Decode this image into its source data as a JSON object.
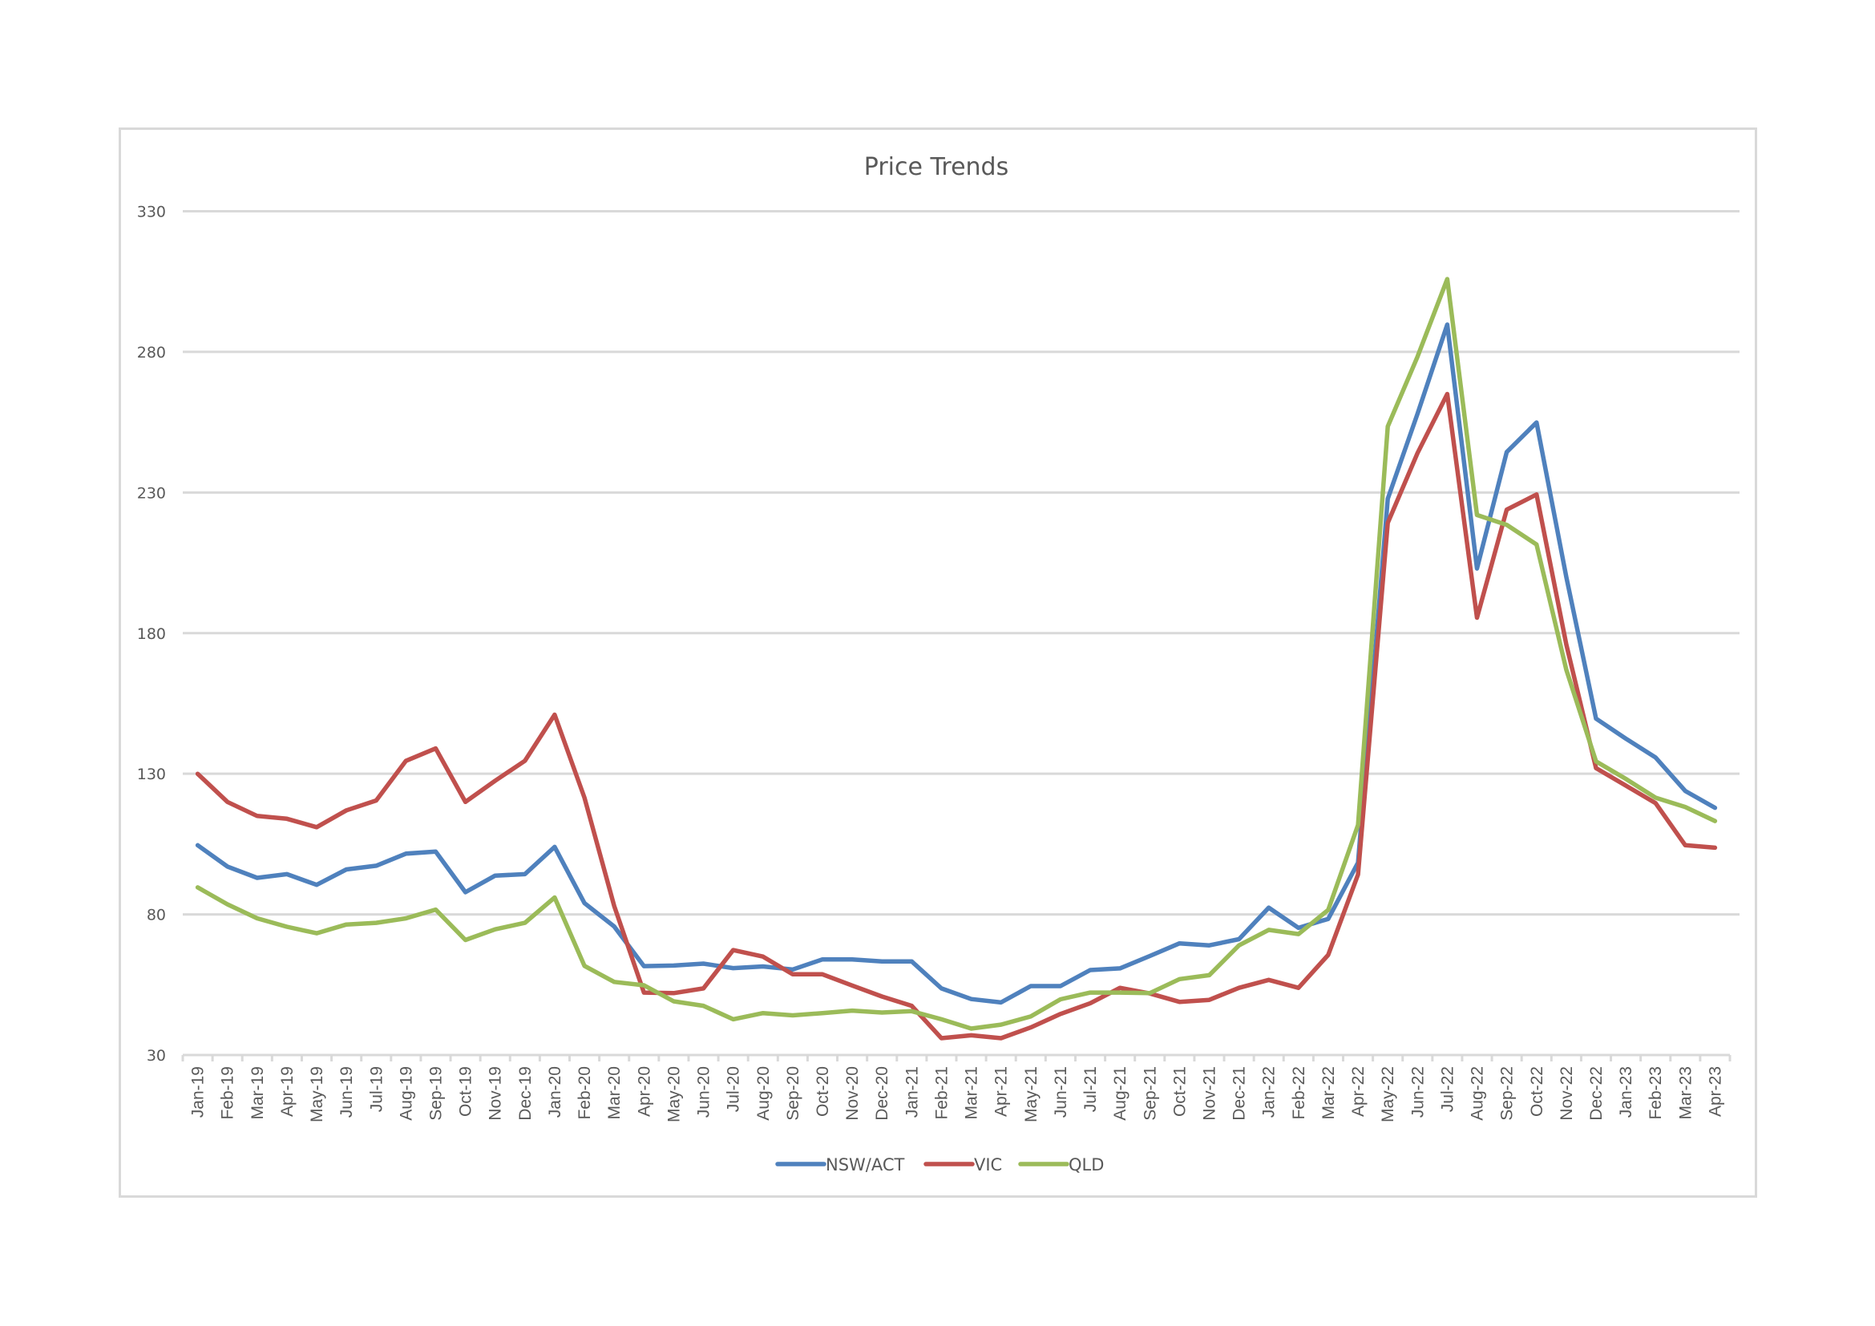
{
  "chart_data": {
    "type": "line",
    "title": "Price Trends",
    "xlabel": "",
    "ylabel": "",
    "ylim": [
      30,
      330
    ],
    "yticks": [
      30,
      80,
      130,
      180,
      230,
      280,
      330
    ],
    "grid": true,
    "legend_position": "bottom",
    "categories": [
      "Jan-19",
      "Feb-19",
      "Mar-19",
      "Apr-19",
      "May-19",
      "Jun-19",
      "Jul-19",
      "Aug-19",
      "Sep-19",
      "Oct-19",
      "Nov-19",
      "Dec-19",
      "Jan-20",
      "Feb-20",
      "Mar-20",
      "Apr-20",
      "May-20",
      "Jun-20",
      "Jul-20",
      "Aug-20",
      "Sep-20",
      "Oct-20",
      "Nov-20",
      "Dec-20",
      "Jan-21",
      "Feb-21",
      "Mar-21",
      "Apr-21",
      "May-21",
      "Jun-21",
      "Jul-21",
      "Aug-21",
      "Sep-21",
      "Oct-21",
      "Nov-21",
      "Dec-21",
      "Jan-22",
      "Feb-22",
      "Mar-22",
      "Apr-22",
      "May-22",
      "Jun-22",
      "Jul-22",
      "Aug-22",
      "Sep-22",
      "Oct-22",
      "Nov-22",
      "Dec-22",
      "Jan-23",
      "Feb-23",
      "Mar-23",
      "Apr-23"
    ],
    "series": [
      {
        "name": "NSW/ACT",
        "color": "#4f81bd",
        "values": [
          104.6,
          97,
          93,
          94.3,
          90.5,
          96,
          97.3,
          101.6,
          102.3,
          87.9,
          93.8,
          94.3,
          104,
          84,
          75.7,
          61.6,
          61.8,
          62.5,
          60.9,
          61.5,
          60.4,
          64,
          64,
          63.3,
          63.3,
          53.7,
          49.9,
          48.7,
          54.5,
          54.5,
          60.2,
          60.8,
          65.2,
          69.7,
          69,
          71.2,
          82.4,
          75.2,
          78.4,
          98.4,
          227.8,
          258,
          289.7,
          203,
          244.4,
          254.9,
          200,
          149.6,
          142.5,
          135.8,
          123.9,
          117.9
        ]
      },
      {
        "name": "VIC",
        "color": "#c0504d",
        "values": [
          130,
          120,
          115,
          114,
          111,
          117,
          120.5,
          134.6,
          139,
          120,
          127.5,
          134.6,
          151,
          121.5,
          83,
          52.2,
          52,
          53.7,
          67.3,
          65,
          58.7,
          58.7,
          54.7,
          50.8,
          47.5,
          36,
          37,
          36,
          39.8,
          44.6,
          48.4,
          53.9,
          51.9,
          48.9,
          49.6,
          53.9,
          56.7,
          53.9,
          65.6,
          94.2,
          219.2,
          244,
          265,
          185.5,
          223.9,
          229.3,
          176,
          132,
          125.8,
          119.6,
          104.6,
          103.7
        ]
      },
      {
        "name": "QLD",
        "color": "#9bbb59",
        "values": [
          89.6,
          83.6,
          78.6,
          75.6,
          73.3,
          76.4,
          77,
          78.6,
          81.7,
          70.9,
          74.7,
          77,
          86,
          61.7,
          56,
          54.8,
          49.1,
          47.5,
          42.7,
          44.9,
          44.1,
          44.9,
          45.8,
          45.1,
          45.6,
          42.7,
          39.4,
          40.8,
          43.7,
          49.8,
          52.2,
          52.2,
          52,
          57,
          58.4,
          69,
          74.5,
          73,
          81.6,
          111.8,
          253.5,
          278.3,
          305.9,
          222,
          218.5,
          211.5,
          167,
          134.4,
          128.2,
          121.5,
          118.2,
          113.2
        ]
      }
    ]
  },
  "colors": {
    "gridline": "#d9d9d9",
    "text": "#595959",
    "frame": "#d9d9d9"
  }
}
